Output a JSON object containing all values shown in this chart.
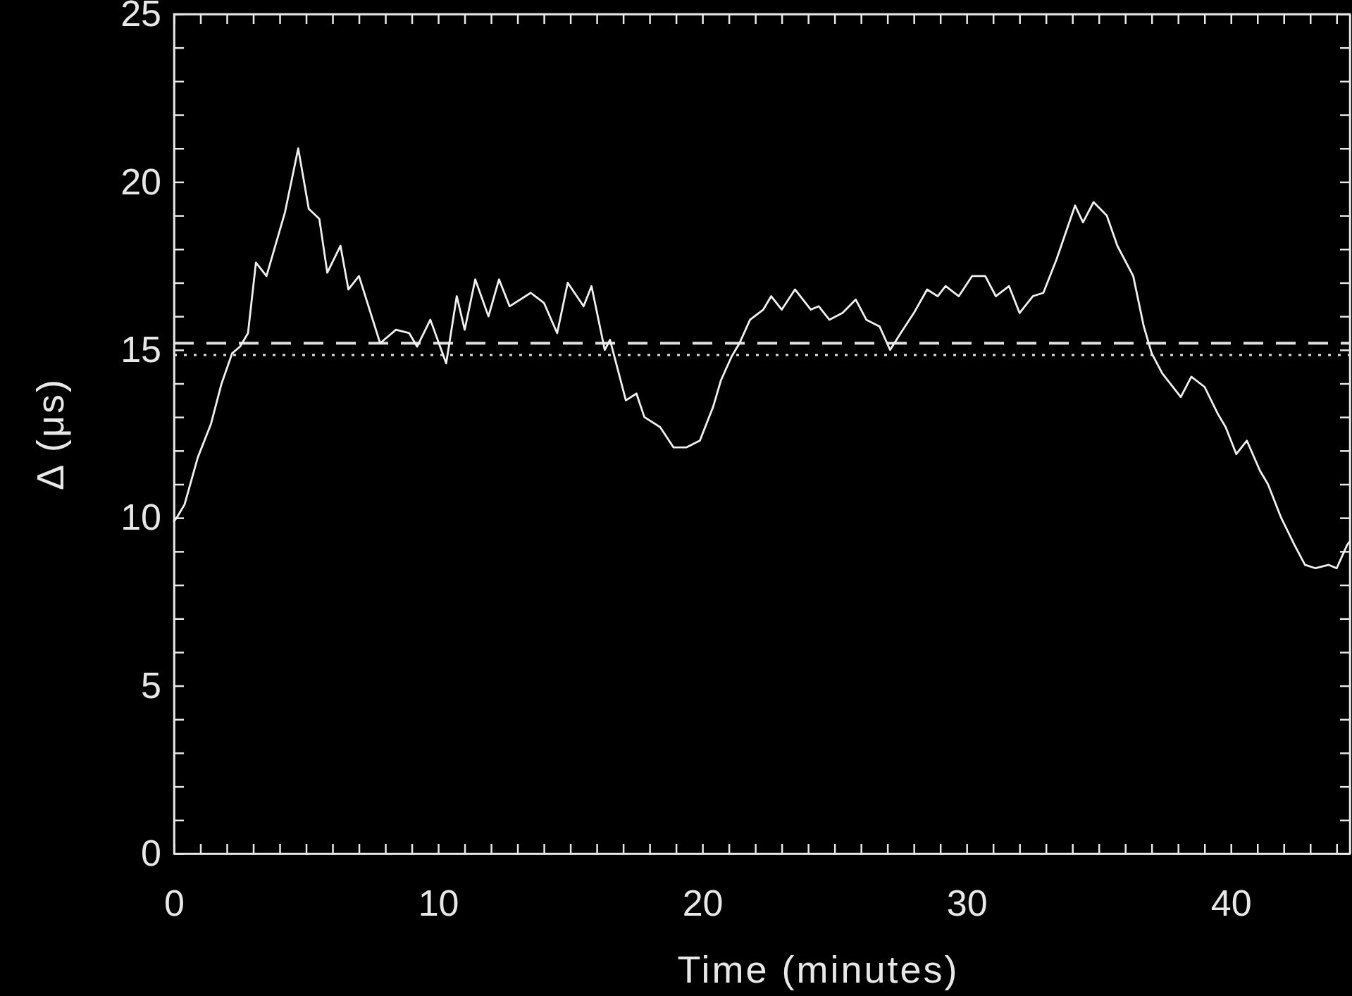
{
  "chart_data": {
    "type": "line",
    "xlabel": "Time (minutes)",
    "ylabel": "Δ (μs)",
    "x": [
      0,
      0.1,
      0.4,
      0.9,
      1.4,
      1.8,
      2.2,
      2.5,
      2.8,
      3.1,
      3.5,
      4.2,
      4.7,
      5.1,
      5.5,
      5.8,
      6.3,
      6.6,
      7.0,
      7.8,
      8.4,
      8.9,
      9.2,
      9.7,
      10.3,
      10.7,
      11.0,
      11.4,
      11.9,
      12.3,
      12.7,
      13.5,
      14.0,
      14.5,
      14.9,
      15.5,
      15.8,
      16.3,
      16.5,
      17.1,
      17.5,
      17.8,
      18.4,
      18.9,
      19.4,
      19.9,
      20.4,
      20.7,
      21.1,
      21.4,
      21.8,
      22.3,
      22.6,
      23.0,
      23.5,
      24.1,
      24.4,
      24.8,
      25.3,
      25.8,
      26.2,
      26.7,
      27.1,
      27.5,
      28.0,
      28.5,
      28.9,
      29.2,
      29.7,
      30.2,
      30.7,
      31.1,
      31.6,
      32.0,
      32.5,
      32.9,
      33.4,
      34.1,
      34.4,
      34.8,
      35.3,
      35.7,
      36.3,
      36.7,
      37.0,
      37.4,
      38.1,
      38.5,
      39.0,
      39.5,
      39.8,
      40.2,
      40.6,
      41.1,
      41.4,
      41.9,
      42.4,
      42.8,
      43.2,
      43.7,
      44.0,
      44.4,
      44.5
    ],
    "series": [
      {
        "color": "#f0f0f0",
        "values": [
          9.9,
          10.0,
          10.4,
          11.8,
          12.8,
          14.0,
          14.9,
          15.1,
          15.5,
          17.6,
          17.2,
          19.1,
          21.0,
          19.2,
          18.9,
          17.3,
          18.1,
          16.8,
          17.2,
          15.2,
          15.6,
          15.5,
          15.1,
          15.9,
          14.6,
          16.6,
          15.6,
          17.1,
          16.0,
          17.1,
          16.3,
          16.7,
          16.4,
          15.5,
          17.0,
          16.3,
          16.9,
          15.0,
          15.3,
          13.5,
          13.7,
          13.0,
          12.7,
          12.1,
          12.1,
          12.3,
          13.3,
          14.1,
          14.8,
          15.2,
          15.9,
          16.2,
          16.6,
          16.2,
          16.8,
          16.2,
          16.3,
          15.9,
          16.1,
          16.5,
          15.9,
          15.7,
          15.0,
          15.5,
          16.1,
          16.8,
          16.6,
          16.9,
          16.6,
          17.2,
          17.2,
          16.6,
          16.9,
          16.1,
          16.6,
          16.7,
          17.7,
          19.3,
          18.8,
          19.4,
          19.0,
          18.1,
          17.2,
          15.7,
          14.9,
          14.3,
          13.6,
          14.2,
          13.9,
          13.1,
          12.7,
          11.9,
          12.3,
          11.4,
          11.0,
          10.0,
          9.2,
          8.6,
          8.5,
          8.6,
          8.5,
          9.2,
          9.3
        ]
      }
    ],
    "xlim": [
      0,
      44.5
    ],
    "ylim": [
      0,
      25
    ],
    "xticks": [
      0,
      {
        "value": 1,
        "label": null
      },
      {
        "value": 2,
        "label": null
      },
      {
        "value": 3,
        "label": null
      },
      {
        "value": 4,
        "label": null
      },
      {
        "value": 5,
        "label": null
      },
      {
        "value": 6,
        "label": null
      },
      {
        "value": 7,
        "label": null
      },
      {
        "value": 8,
        "label": null
      },
      {
        "value": 9,
        "label": null
      },
      10,
      {
        "value": 11,
        "label": null
      },
      {
        "value": 12,
        "label": null
      },
      {
        "value": 13,
        "label": null
      },
      {
        "value": 14,
        "label": null
      },
      {
        "value": 15,
        "label": null
      },
      {
        "value": 16,
        "label": null
      },
      {
        "value": 17,
        "label": null
      },
      {
        "value": 18,
        "label": null
      },
      {
        "value": 19,
        "label": null
      },
      20,
      {
        "value": 21,
        "label": null
      },
      {
        "value": 22,
        "label": null
      },
      {
        "value": 23,
        "label": null
      },
      {
        "value": 24,
        "label": null
      },
      {
        "value": 25,
        "label": null
      },
      {
        "value": 26,
        "label": null
      },
      {
        "value": 27,
        "label": null
      },
      {
        "value": 28,
        "label": null
      },
      {
        "value": 29,
        "label": null
      },
      30,
      {
        "value": 31,
        "label": null
      },
      {
        "value": 32,
        "label": null
      },
      {
        "value": 33,
        "label": null
      },
      {
        "value": 34,
        "label": null
      },
      {
        "value": 35,
        "label": null
      },
      {
        "value": 36,
        "label": null
      },
      {
        "value": 37,
        "label": null
      },
      {
        "value": 38,
        "label": null
      },
      {
        "value": 39,
        "label": null
      },
      40,
      {
        "value": 41,
        "label": null
      },
      {
        "value": 42,
        "label": null
      },
      {
        "value": 43,
        "label": null
      },
      {
        "value": 44,
        "label": null
      }
    ],
    "yticks": [
      0,
      {
        "value": 1,
        "label": null
      },
      {
        "value": 2,
        "label": null
      },
      {
        "value": 3,
        "label": null
      },
      {
        "value": 4,
        "label": null
      },
      5,
      {
        "value": 6,
        "label": null
      },
      {
        "value": 7,
        "label": null
      },
      {
        "value": 8,
        "label": null
      },
      {
        "value": 9,
        "label": null
      },
      10,
      {
        "value": 11,
        "label": null
      },
      {
        "value": 12,
        "label": null
      },
      {
        "value": 13,
        "label": null
      },
      {
        "value": 14,
        "label": null
      },
      15,
      {
        "value": 16,
        "label": null
      },
      {
        "value": 17,
        "label": null
      },
      {
        "value": 18,
        "label": null
      },
      {
        "value": 19,
        "label": null
      },
      20,
      {
        "value": 21,
        "label": null
      },
      {
        "value": 22,
        "label": null
      },
      {
        "value": 23,
        "label": null
      },
      {
        "value": 24,
        "label": null
      },
      25
    ],
    "ref_lines": [
      {
        "axis": "y",
        "value": 15.2,
        "line_style": "dashed",
        "color": "#e0e0e0"
      },
      {
        "axis": "y",
        "value": 14.85,
        "line_style": "dotted",
        "color": "#e0e0e0"
      }
    ],
    "grid": false,
    "marker": "none",
    "line_style": "solid"
  }
}
